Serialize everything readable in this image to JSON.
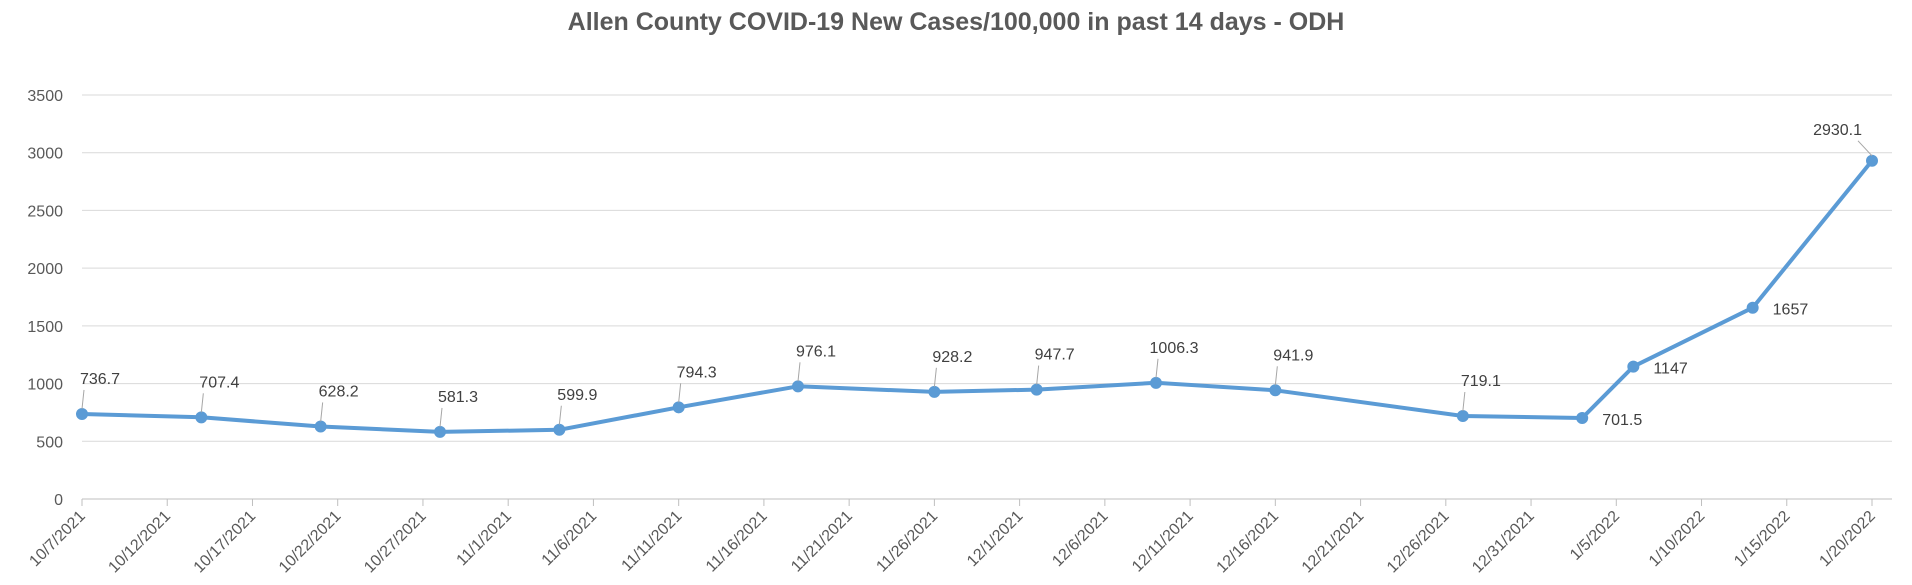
{
  "chart_data": {
    "type": "line",
    "title": "Allen County COVID-19 New Cases/100,000 in past 14 days - ODH",
    "xlabel": "",
    "ylabel": "",
    "ylim": [
      0,
      3500
    ],
    "yticks": [
      0,
      500,
      1000,
      1500,
      2000,
      2500,
      3000,
      3500
    ],
    "grid": true,
    "legend": "none",
    "x_tick_labels": [
      "10/7/2021",
      "10/12/2021",
      "10/17/2021",
      "10/22/2021",
      "10/27/2021",
      "11/1/2021",
      "11/6/2021",
      "11/11/2021",
      "11/16/2021",
      "11/21/2021",
      "11/26/2021",
      "12/1/2021",
      "12/6/2021",
      "12/11/2021",
      "12/16/2021",
      "12/21/2021",
      "12/26/2021",
      "12/31/2021",
      "1/5/2022",
      "1/10/2022",
      "1/15/2022",
      "1/20/2022"
    ],
    "xlim": [
      "10/7/2021",
      "1/20/2022"
    ],
    "color": "#5b9bd5",
    "series": [
      {
        "points": [
          {
            "date": "10/7/2021",
            "value": 736.7,
            "label": "736.7"
          },
          {
            "date": "10/14/2021",
            "value": 707.4,
            "label": "707.4"
          },
          {
            "date": "10/21/2021",
            "value": 628.2,
            "label": "628.2"
          },
          {
            "date": "10/28/2021",
            "value": 581.3,
            "label": "581.3"
          },
          {
            "date": "11/4/2021",
            "value": 599.9,
            "label": "599.9"
          },
          {
            "date": "11/11/2021",
            "value": 794.3,
            "label": "794.3"
          },
          {
            "date": "11/18/2021",
            "value": 976.1,
            "label": "976.1"
          },
          {
            "date": "11/26/2021",
            "value": 928.2,
            "label": "928.2"
          },
          {
            "date": "12/2/2021",
            "value": 947.7,
            "label": "947.7"
          },
          {
            "date": "12/9/2021",
            "value": 1006.3,
            "label": "1006.3"
          },
          {
            "date": "12/16/2021",
            "value": 941.9,
            "label": "941.9"
          },
          {
            "date": "12/27/2021",
            "value": 719.1,
            "label": "719.1"
          },
          {
            "date": "1/3/2022",
            "value": 701.5,
            "label": "701.5"
          },
          {
            "date": "1/6/2022",
            "value": 1147,
            "label": "1147"
          },
          {
            "date": "1/13/2022",
            "value": 1657,
            "label": "1657"
          },
          {
            "date": "1/20/2022",
            "value": 2930.1,
            "label": "2930.1"
          }
        ]
      }
    ]
  }
}
